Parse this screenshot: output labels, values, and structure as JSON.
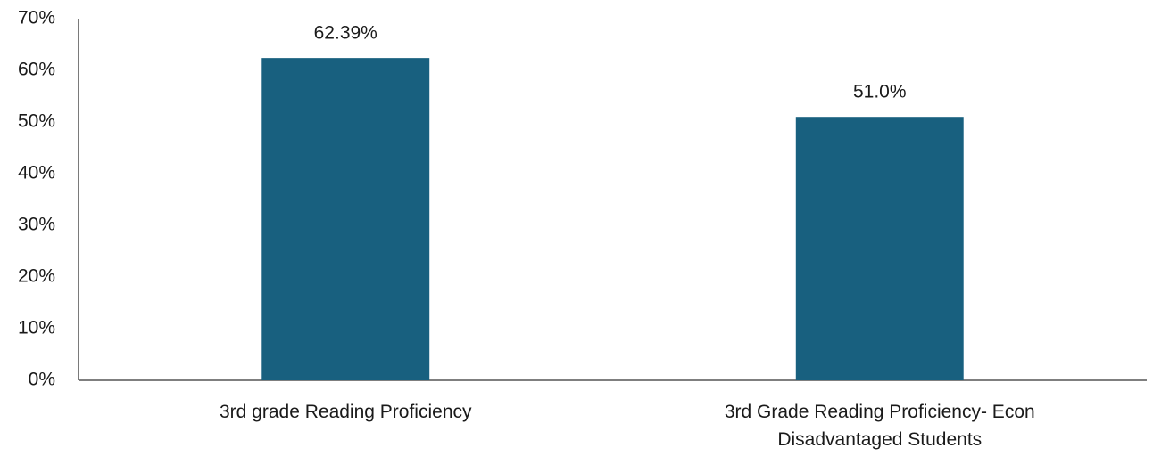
{
  "chart_data": {
    "type": "bar",
    "categories": [
      "3rd grade Reading Proficiency",
      "3rd Grade Reading Proficiency- Econ Disadvantaged Students"
    ],
    "values": [
      62.39,
      51.0
    ],
    "value_labels": [
      "62.39%",
      "51.0%"
    ],
    "color": "#18607f",
    "ylim": [
      0,
      70
    ],
    "yticks": [
      {
        "value": 0,
        "label": "0%"
      },
      {
        "value": 10,
        "label": "10%"
      },
      {
        "value": 20,
        "label": "20%"
      },
      {
        "value": 30,
        "label": "30%"
      },
      {
        "value": 40,
        "label": "40%"
      },
      {
        "value": 50,
        "label": "50%"
      },
      {
        "value": 60,
        "label": "60%"
      },
      {
        "value": 70,
        "label": "70%"
      }
    ],
    "grid": false
  }
}
